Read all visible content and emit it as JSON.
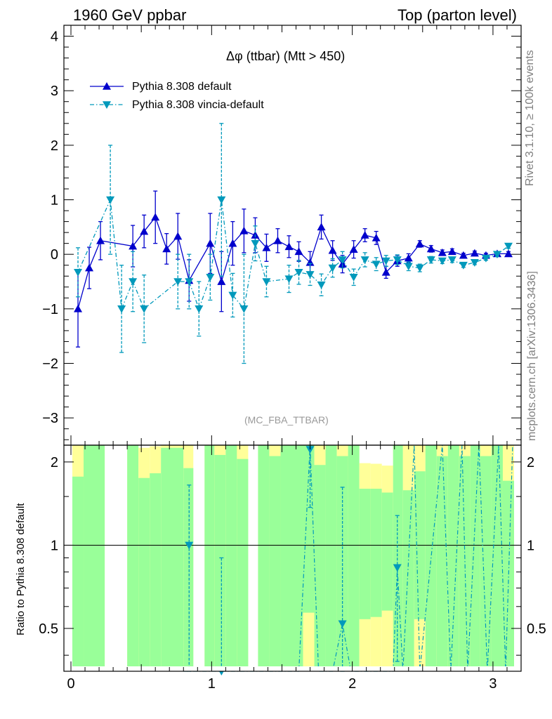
{
  "header": {
    "left": "1960 GeV ppbar",
    "right": "Top (parton level)"
  },
  "side_text": {
    "rivet": "Rivet 3.1.10, ≥ 100k events",
    "mcplots": "mcplots.cern.ch [arXiv:1306.3436]"
  },
  "chart_data": [
    {
      "type": "line",
      "title": "Δφ (ttbar) (Mtt > 450)",
      "analysis": "(MC_FBA_TTBAR)",
      "xlim": [
        -0.05,
        3.2
      ],
      "ylim": [
        -3.5,
        4.2
      ],
      "y_ticks": [
        -3,
        -2,
        -1,
        0,
        1,
        2,
        3,
        4
      ],
      "y_tick_labels": [
        "−3",
        "−2",
        "−1",
        "0",
        "1",
        "2",
        "3",
        "4"
      ],
      "legend_position": "top-left",
      "series": [
        {
          "name": "Pythia 8.308 default",
          "color": "#0000cc",
          "marker": "triangle-up",
          "line": "solid",
          "x": [
            0.05,
            0.13,
            0.21,
            0.44,
            0.52,
            0.6,
            0.68,
            0.76,
            0.84,
            0.99,
            1.07,
            1.15,
            1.23,
            1.31,
            1.39,
            1.47,
            1.55,
            1.62,
            1.7,
            1.78,
            1.86,
            1.93,
            2.01,
            2.09,
            2.17,
            2.24,
            2.32,
            2.4,
            2.48,
            2.56,
            2.64,
            2.71,
            2.79,
            2.87,
            2.95,
            3.03,
            3.11
          ],
          "y": [
            -1.0,
            -0.25,
            0.25,
            0.15,
            0.42,
            0.68,
            0.1,
            0.33,
            -0.48,
            0.2,
            -0.5,
            0.2,
            0.43,
            0.35,
            0.12,
            0.25,
            0.14,
            0.05,
            -0.15,
            0.5,
            0.07,
            -0.18,
            0.09,
            0.35,
            0.3,
            -0.33,
            -0.12,
            -0.07,
            0.19,
            0.1,
            0.03,
            0.05,
            -0.02,
            0.02,
            -0.02,
            0.01,
            0.01
          ],
          "err": [
            0.7,
            0.38,
            0.35,
            0.38,
            0.3,
            0.48,
            0.28,
            0.42,
            0.38,
            0.55,
            0.55,
            0.4,
            0.4,
            0.32,
            0.25,
            0.22,
            0.2,
            0.18,
            0.2,
            0.22,
            0.18,
            0.16,
            0.16,
            0.12,
            0.12,
            0.11,
            0.1,
            0.08,
            0.06,
            0.06,
            0.05,
            0.05,
            0.04,
            0.04,
            0.04,
            0.04,
            0.04
          ]
        },
        {
          "name": "Pythia 8.308 vincia-default",
          "color": "#0099bb",
          "marker": "triangle-down",
          "line": "dash-dot",
          "x": [
            0.05,
            0.28,
            0.36,
            0.44,
            0.52,
            0.76,
            0.84,
            0.91,
            0.99,
            1.07,
            1.15,
            1.23,
            1.31,
            1.39,
            1.55,
            1.62,
            1.7,
            1.78,
            1.86,
            1.93,
            2.01,
            2.09,
            2.17,
            2.24,
            2.32,
            2.4,
            2.48,
            2.56,
            2.64,
            2.71,
            2.79,
            2.87,
            2.95,
            3.03,
            3.11
          ],
          "y": [
            -0.33,
            1.0,
            -1.0,
            -0.5,
            -1.0,
            -0.5,
            -0.5,
            -1.0,
            -0.42,
            1.0,
            -0.75,
            -1.0,
            0.2,
            -0.5,
            -0.45,
            -0.33,
            -0.37,
            -0.56,
            -0.25,
            -0.1,
            -0.42,
            -0.1,
            -0.18,
            -0.12,
            -0.1,
            -0.22,
            -0.25,
            -0.1,
            -0.12,
            -0.1,
            -0.2,
            -0.15,
            -0.07,
            0.0,
            0.15
          ],
          "err": [
            0.45,
            1.0,
            0.8,
            0.55,
            0.62,
            0.5,
            0.5,
            0.5,
            0.42,
            1.4,
            0.4,
            1.0,
            0.32,
            0.28,
            0.25,
            0.22,
            0.2,
            0.2,
            0.17,
            0.15,
            0.15,
            0.13,
            0.12,
            0.1,
            0.09,
            0.08,
            0.07,
            0.06,
            0.05,
            0.05,
            0.04,
            0.04,
            0.04,
            0.04,
            0.04
          ]
        }
      ]
    },
    {
      "type": "line",
      "ylabel": "Ratio to Pythia 8.308 default",
      "xlim": [
        -0.05,
        3.2
      ],
      "ylim": [
        0.35,
        2.3
      ],
      "x_ticks": [
        0,
        1,
        2,
        3
      ],
      "y_ticks": [
        0.5,
        1,
        2
      ],
      "y_tick_labels": [
        "0.5",
        "1",
        "2"
      ],
      "reference_line": 1,
      "band_colors": {
        "inner": "#99ff99",
        "outer": "#ffff99"
      },
      "bands": [
        {
          "x0": 0.01,
          "x1": 0.09,
          "g_lo": 0.35,
          "g_hi": 1.77,
          "y_lo": 0.35,
          "y_hi": 2.3
        },
        {
          "x0": 0.09,
          "x1": 0.24,
          "g_lo": 0.35,
          "g_hi": 2.3,
          "y_lo": 0.35,
          "y_hi": 2.3
        },
        {
          "x0": 0.4,
          "x1": 0.48,
          "g_lo": 0.35,
          "g_hi": 2.3,
          "y_lo": 0.35,
          "y_hi": 2.3
        },
        {
          "x0": 0.48,
          "x1": 0.56,
          "g_lo": 0.35,
          "g_hi": 1.75,
          "y_lo": 0.35,
          "y_hi": 2.25
        },
        {
          "x0": 0.56,
          "x1": 0.64,
          "g_lo": 0.35,
          "g_hi": 1.82,
          "y_lo": 0.35,
          "y_hi": 2.28
        },
        {
          "x0": 0.64,
          "x1": 0.8,
          "g_lo": 0.35,
          "g_hi": 2.25,
          "y_lo": 0.35,
          "y_hi": 2.3
        },
        {
          "x0": 0.8,
          "x1": 0.87,
          "g_lo": 0.35,
          "g_hi": 1.9,
          "y_lo": 0.35,
          "y_hi": 2.3
        },
        {
          "x0": 0.95,
          "x1": 1.02,
          "g_lo": 0.35,
          "g_hi": 2.3,
          "y_lo": 0.35,
          "y_hi": 2.3
        },
        {
          "x0": 1.02,
          "x1": 1.1,
          "g_lo": 0.35,
          "g_hi": 2.12,
          "y_lo": 0.35,
          "y_hi": 2.3
        },
        {
          "x0": 1.1,
          "x1": 1.18,
          "g_lo": 0.35,
          "g_hi": 2.3,
          "y_lo": 0.35,
          "y_hi": 2.3
        },
        {
          "x0": 1.18,
          "x1": 1.26,
          "g_lo": 0.35,
          "g_hi": 2.05,
          "y_lo": 0.35,
          "y_hi": 2.3
        },
        {
          "x0": 1.33,
          "x1": 1.41,
          "g_lo": 0.35,
          "g_hi": 2.3,
          "y_lo": 0.35,
          "y_hi": 2.3
        },
        {
          "x0": 1.41,
          "x1": 1.49,
          "g_lo": 0.35,
          "g_hi": 2.1,
          "y_lo": 0.35,
          "y_hi": 2.3
        },
        {
          "x0": 1.49,
          "x1": 1.65,
          "g_lo": 0.35,
          "g_hi": 2.3,
          "y_lo": 0.35,
          "y_hi": 2.3
        },
        {
          "x0": 1.65,
          "x1": 1.73,
          "g_lo": 0.57,
          "g_hi": 2.3,
          "y_lo": 0.35,
          "y_hi": 2.3
        },
        {
          "x0": 1.73,
          "x1": 1.81,
          "g_lo": 0.35,
          "g_hi": 1.95,
          "y_lo": 0.35,
          "y_hi": 2.3
        },
        {
          "x0": 1.81,
          "x1": 1.89,
          "g_lo": 0.35,
          "g_hi": 2.3,
          "y_lo": 0.35,
          "y_hi": 2.3
        },
        {
          "x0": 1.89,
          "x1": 1.97,
          "g_lo": 0.35,
          "g_hi": 2.1,
          "y_lo": 0.35,
          "y_hi": 2.3
        },
        {
          "x0": 1.97,
          "x1": 2.05,
          "g_lo": 0.35,
          "g_hi": 2.3,
          "y_lo": 0.35,
          "y_hi": 2.3
        },
        {
          "x0": 2.05,
          "x1": 2.13,
          "g_lo": 0.54,
          "g_hi": 1.6,
          "y_lo": 0.35,
          "y_hi": 1.98
        },
        {
          "x0": 2.13,
          "x1": 2.21,
          "g_lo": 0.55,
          "g_hi": 1.6,
          "y_lo": 0.35,
          "y_hi": 1.97
        },
        {
          "x0": 2.21,
          "x1": 2.29,
          "g_lo": 0.58,
          "g_hi": 1.55,
          "y_lo": 0.35,
          "y_hi": 1.94
        },
        {
          "x0": 2.29,
          "x1": 2.36,
          "g_lo": 0.35,
          "g_hi": 2.3,
          "y_lo": 0.35,
          "y_hi": 2.3
        },
        {
          "x0": 2.36,
          "x1": 2.44,
          "g_lo": 0.35,
          "g_hi": 1.58,
          "y_lo": 0.35,
          "y_hi": 2.3
        },
        {
          "x0": 2.44,
          "x1": 2.52,
          "g_lo": 0.54,
          "g_hi": 1.85,
          "y_lo": 0.35,
          "y_hi": 2.3
        },
        {
          "x0": 2.52,
          "x1": 2.6,
          "g_lo": 0.35,
          "g_hi": 2.3,
          "y_lo": 0.35,
          "y_hi": 2.3
        },
        {
          "x0": 2.6,
          "x1": 2.68,
          "g_lo": 0.35,
          "g_hi": 2.1,
          "y_lo": 0.35,
          "y_hi": 2.3
        },
        {
          "x0": 2.68,
          "x1": 2.76,
          "g_lo": 0.35,
          "g_hi": 2.3,
          "y_lo": 0.35,
          "y_hi": 2.3
        },
        {
          "x0": 2.76,
          "x1": 2.84,
          "g_lo": 0.35,
          "g_hi": 2.1,
          "y_lo": 0.35,
          "y_hi": 2.3
        },
        {
          "x0": 2.84,
          "x1": 2.91,
          "g_lo": 0.35,
          "g_hi": 2.3,
          "y_lo": 0.35,
          "y_hi": 2.3
        },
        {
          "x0": 2.91,
          "x1": 2.99,
          "g_lo": 0.35,
          "g_hi": 2.1,
          "y_lo": 0.35,
          "y_hi": 2.3
        },
        {
          "x0": 2.99,
          "x1": 3.07,
          "g_lo": 0.35,
          "g_hi": 2.3,
          "y_lo": 0.35,
          "y_hi": 2.3
        },
        {
          "x0": 3.07,
          "x1": 3.15,
          "g_lo": 0.35,
          "g_hi": 1.71,
          "y_lo": 0.35,
          "y_hi": 2.3
        }
      ],
      "ratio_series": {
        "name": "Pythia 8.308 vincia-default",
        "color": "#0099bb",
        "x": [
          0.84,
          1.07,
          1.7,
          1.93,
          2.32
        ],
        "y": [
          1.0,
          0.35,
          2.22,
          0.52,
          0.83
        ],
        "err": [
          0.65,
          0.55,
          0.85,
          1.1,
          0.45
        ],
        "line_x": [
          0.8,
          0.94,
          1.62,
          1.7,
          1.76,
          1.86,
          1.93,
          1.99,
          2.29,
          2.32,
          2.36,
          2.44,
          2.48,
          2.64,
          2.7,
          2.78,
          2.82,
          2.9,
          2.96,
          3.04,
          3.09,
          3.14
        ],
        "line_y": [
          0.35,
          0.35,
          0.35,
          2.3,
          0.35,
          0.35,
          0.52,
          0.35,
          0.35,
          0.83,
          0.35,
          2.3,
          0.35,
          2.3,
          0.35,
          2.3,
          0.35,
          2.3,
          0.35,
          2.3,
          0.35,
          2.3
        ]
      }
    }
  ]
}
